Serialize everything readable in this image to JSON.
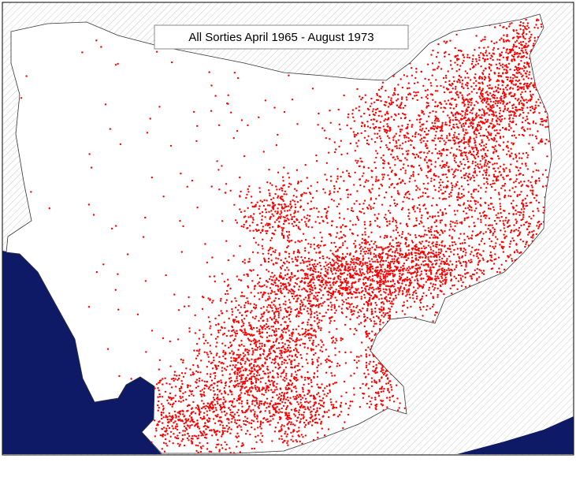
{
  "map": {
    "title": "All Sorties April 1965 - August 1973"
  }
}
